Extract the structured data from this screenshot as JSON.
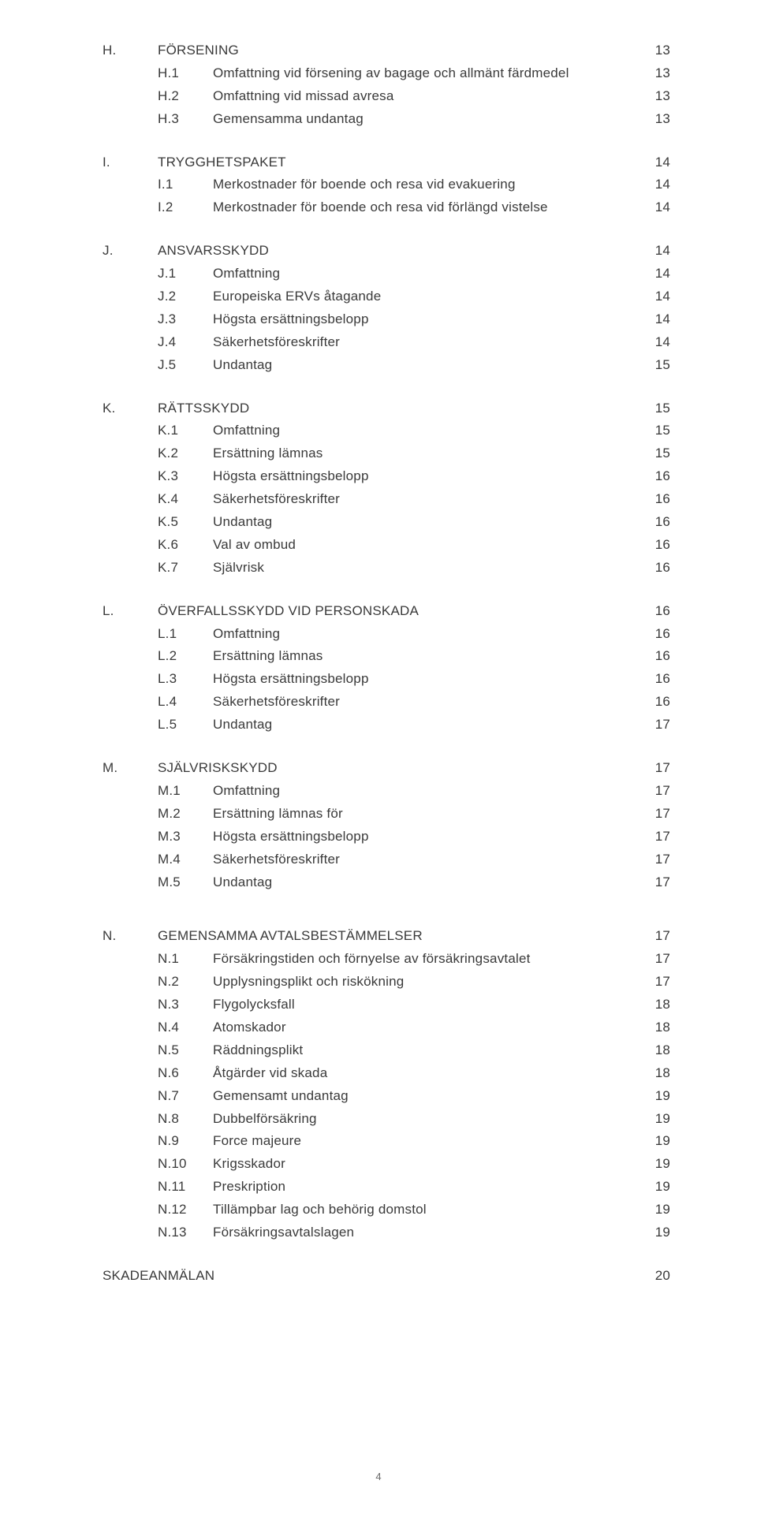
{
  "footer_page": "4",
  "sections": [
    {
      "letter": "H.",
      "title": "FÖRSENING",
      "page": "13",
      "items": [
        {
          "num": "H.1",
          "title": "Omfattning vid försening av bagage och allmänt färdmedel",
          "page": "13"
        },
        {
          "num": "H.2",
          "title": "Omfattning vid missad avresa",
          "page": "13"
        },
        {
          "num": "H.3",
          "title": "Gemensamma undantag",
          "page": "13"
        }
      ]
    },
    {
      "letter": "I.",
      "title": "TRYGGHETSPAKET",
      "page": "14",
      "items": [
        {
          "num": "I.1",
          "title": "Merkostnader för boende och resa vid evakuering",
          "page": "14"
        },
        {
          "num": "I.2",
          "title": "Merkostnader för boende och resa vid förlängd vistelse",
          "page": "14"
        }
      ]
    },
    {
      "letter": "J.",
      "title": "ANSVARSSKYDD",
      "page": "14",
      "items": [
        {
          "num": "J.1",
          "title": "Omfattning",
          "page": "14"
        },
        {
          "num": "J.2",
          "title": "Europeiska ERVs åtagande",
          "page": "14"
        },
        {
          "num": "J.3",
          "title": "Högsta ersättningsbelopp",
          "page": "14"
        },
        {
          "num": "J.4",
          "title": "Säkerhetsföreskrifter",
          "page": "14"
        },
        {
          "num": "J.5",
          "title": "Undantag",
          "page": "15"
        }
      ]
    },
    {
      "letter": "K.",
      "title": "RÄTTSSKYDD",
      "page": "15",
      "items": [
        {
          "num": "K.1",
          "title": "Omfattning",
          "page": "15"
        },
        {
          "num": "K.2",
          "title": "Ersättning lämnas",
          "page": "15"
        },
        {
          "num": "K.3",
          "title": "Högsta ersättningsbelopp",
          "page": "16"
        },
        {
          "num": "K.4",
          "title": "Säkerhetsföreskrifter",
          "page": "16"
        },
        {
          "num": "K.5",
          "title": "Undantag",
          "page": "16"
        },
        {
          "num": "K.6",
          "title": "Val av ombud",
          "page": "16"
        },
        {
          "num": "K.7",
          "title": "Självrisk",
          "page": "16"
        }
      ]
    },
    {
      "letter": "L.",
      "title": "ÖVERFALLSSKYDD VID PERSONSKADA",
      "page": "16",
      "items": [
        {
          "num": "L.1",
          "title": "Omfattning",
          "page": "16"
        },
        {
          "num": "L.2",
          "title": "Ersättning lämnas",
          "page": "16"
        },
        {
          "num": "L.3",
          "title": "Högsta ersättningsbelopp",
          "page": "16"
        },
        {
          "num": "L.4",
          "title": "Säkerhetsföreskrifter",
          "page": "16"
        },
        {
          "num": "L.5",
          "title": "Undantag",
          "page": "17"
        }
      ]
    },
    {
      "letter": "M.",
      "title": "SJÄLVRISKSKYDD",
      "page": "17",
      "items": [
        {
          "num": "M.1",
          "title": "Omfattning",
          "page": "17"
        },
        {
          "num": "M.2",
          "title": "Ersättning lämnas för",
          "page": "17"
        },
        {
          "num": "M.3",
          "title": "Högsta ersättningsbelopp",
          "page": "17"
        },
        {
          "num": "M.4",
          "title": "Säkerhetsföreskrifter",
          "page": "17"
        },
        {
          "num": "M.5",
          "title": "Undantag",
          "page": "17"
        }
      ]
    },
    {
      "letter": "N.",
      "title": "GEMENSAMMA AVTALSBESTÄMMELSER",
      "page": "17",
      "gap_before": true,
      "items": [
        {
          "num": "N.1",
          "title": "Försäkringstiden och förnyelse av försäkringsavtalet",
          "page": "17"
        },
        {
          "num": "N.2",
          "title": "Upplysningsplikt och riskökning",
          "page": "17"
        },
        {
          "num": "N.3",
          "title": "Flygolycksfall",
          "page": "18"
        },
        {
          "num": "N.4",
          "title": "Atomskador",
          "page": "18"
        },
        {
          "num": "N.5",
          "title": "Räddningsplikt",
          "page": "18"
        },
        {
          "num": "N.6",
          "title": "Åtgärder vid skada",
          "page": "18"
        },
        {
          "num": "N.7",
          "title": "Gemensamt undantag",
          "page": "19"
        },
        {
          "num": "N.8",
          "title": "Dubbelförsäkring",
          "page": "19"
        },
        {
          "num": "N.9",
          "title": "Force majeure",
          "page": "19"
        },
        {
          "num": "N.10",
          "title": "Krigsskador",
          "page": "19"
        },
        {
          "num": "N.11",
          "title": "Preskription",
          "page": "19"
        },
        {
          "num": "N.12",
          "title": "Tillämpbar lag och behörig domstol",
          "page": "19"
        },
        {
          "num": "N.13",
          "title": "Försäkringsavtalslagen",
          "page": "19"
        }
      ]
    }
  ],
  "final": {
    "title": "SKADEANMÄLAN",
    "page": "20"
  }
}
